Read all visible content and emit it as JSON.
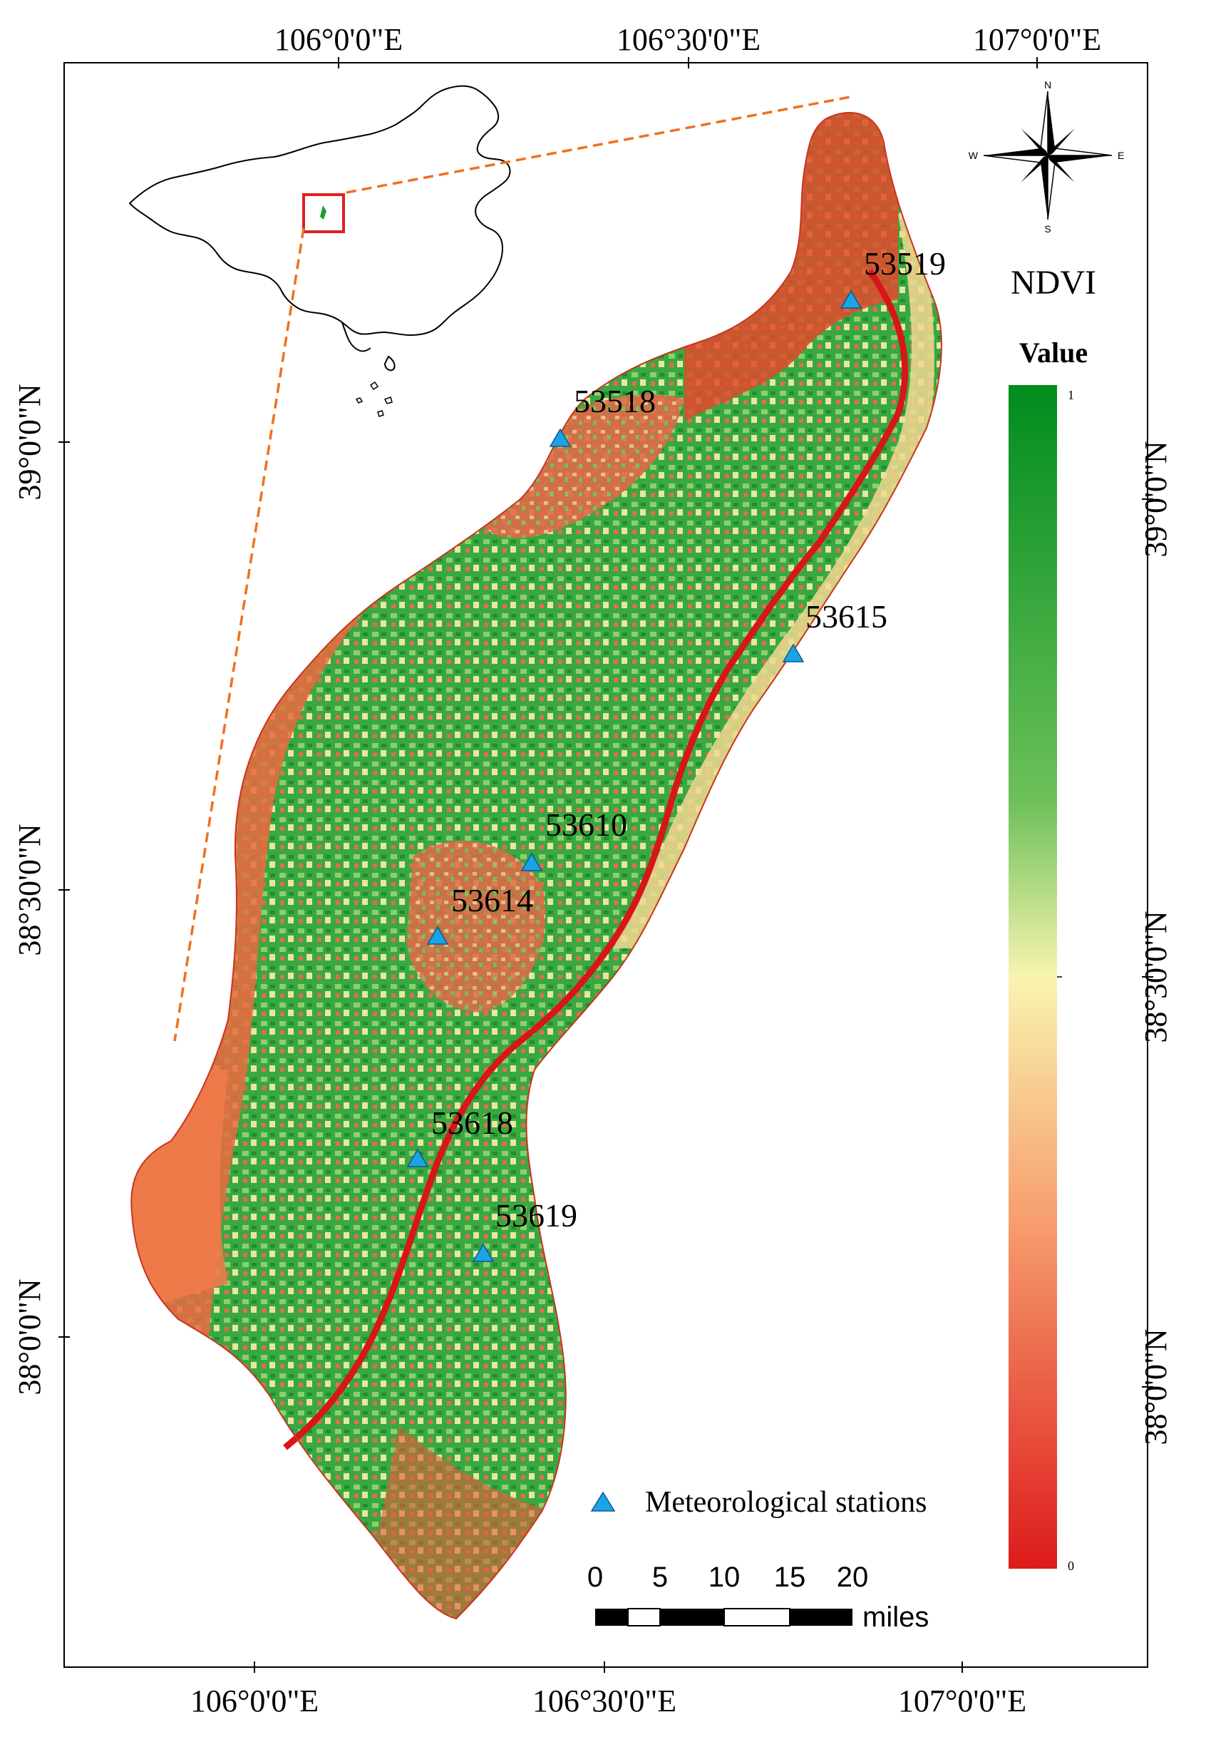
{
  "map": {
    "lon_ticks_top": [
      "106°0'0\"E",
      "106°30'0\"E",
      "107°0'0\"E"
    ],
    "lon_ticks_bottom": [
      "106°0'0\"E",
      "106°30'0\"E",
      "107°0'0\"E"
    ],
    "lat_ticks_left": [
      "39°0'0\"N",
      "38°30'0\"N",
      "38°0'0\"N"
    ],
    "lat_ticks_right": [
      "39°0'0\"N",
      "38°30'0\"N",
      "38°0'0\"N"
    ],
    "stations": [
      {
        "id": "53519"
      },
      {
        "id": "53518"
      },
      {
        "id": "53615"
      },
      {
        "id": "53610"
      },
      {
        "id": "53614"
      },
      {
        "id": "53618"
      },
      {
        "id": "53619"
      }
    ]
  },
  "legend": {
    "title": "NDVI",
    "subtitle": "Value",
    "max_label": "1",
    "min_label": "0",
    "colors": [
      "#008c1e",
      "#6cc05a",
      "#f8f4b0",
      "#f7a070",
      "#dd1b1b"
    ],
    "station_entry": "Meteorological stations",
    "station_color": "#1ca3e6"
  },
  "scalebar": {
    "ticks": [
      "0",
      "5",
      "10",
      "15",
      "20"
    ],
    "unit": "miles"
  },
  "compass": {
    "n": "N",
    "s": "S",
    "e": "E",
    "w": "W"
  },
  "colors": {
    "study_area_green": "#2ea83c",
    "study_area_red": "#e5452a",
    "inset_outline": "#000000",
    "inset_box": "#e02020",
    "callout_lines": "#f07020"
  }
}
